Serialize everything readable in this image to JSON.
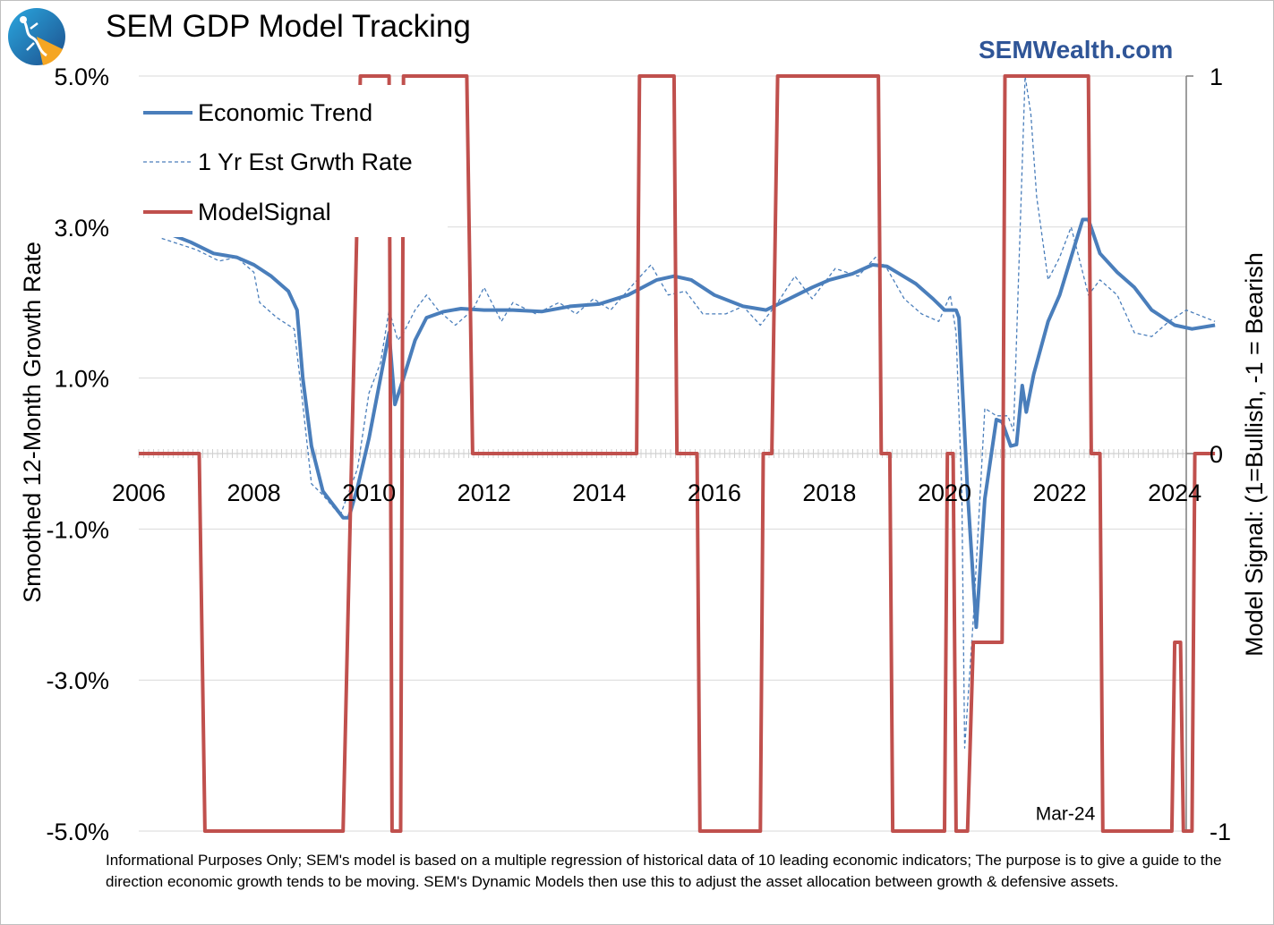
{
  "header": {
    "title": "SEM GDP Model Tracking",
    "brand": "SEMWealth.com"
  },
  "footnote": "Informational Purposes Only; SEM's model is based on a multiple regression of historical data of 10 leading economic indicators; The purpose is to give a guide to the direction economic growth tends to be moving. SEM's Dynamic Models then use this to adjust the asset allocation between growth & defensive assets.",
  "colors": {
    "trend": "#4a7ebb",
    "estimate": "#4a7ebb",
    "signal": "#c0504d",
    "brand": "#2f5597",
    "grid": "#d9d9d9"
  },
  "chart_data": {
    "type": "line",
    "title": "SEM GDP Model Tracking",
    "ylabel": "Smoothed 12-Month Growth Rate",
    "y2label": "Model Signal: (1=Bullish, -1 = Bearish",
    "ylim": [
      -5.0,
      5.0
    ],
    "y2lim": [
      -1,
      1
    ],
    "xlim": [
      2006,
      2024.2
    ],
    "yticks": [
      5.0,
      3.0,
      1.0,
      -1.0,
      -3.0,
      -5.0
    ],
    "ytick_labels": [
      "5.0%",
      "3.0%",
      "1.0%",
      "-1.0%",
      "-3.0%",
      "-5.0%"
    ],
    "y2ticks": [
      1,
      0,
      -1
    ],
    "y2tick_labels": [
      "1",
      "0",
      "-1"
    ],
    "xticks": [
      2006,
      2008,
      2010,
      2012,
      2014,
      2016,
      2018,
      2020,
      2022,
      2024
    ],
    "xtick_labels": [
      "2006",
      "2008",
      "2010",
      "2012",
      "2014",
      "2016",
      "2018",
      "2020",
      "2022",
      "2024"
    ],
    "annotation": {
      "text": "Mar-24",
      "x": 2022.1,
      "y": -4.85
    },
    "legend": [
      "Economic Trend",
      "1 Yr Est Grwth Rate",
      "ModelSignal"
    ],
    "series": [
      {
        "name": "Economic Trend",
        "axis": "left",
        "style": "solid",
        "points": [
          [
            2006.4,
            2.95
          ],
          [
            2006.9,
            2.8
          ],
          [
            2007.3,
            2.65
          ],
          [
            2007.7,
            2.6
          ],
          [
            2008.0,
            2.5
          ],
          [
            2008.3,
            2.35
          ],
          [
            2008.6,
            2.15
          ],
          [
            2008.75,
            1.9
          ],
          [
            2008.85,
            1.0
          ],
          [
            2009.0,
            0.1
          ],
          [
            2009.2,
            -0.5
          ],
          [
            2009.4,
            -0.7
          ],
          [
            2009.55,
            -0.85
          ],
          [
            2009.65,
            -0.85
          ],
          [
            2009.8,
            -0.45
          ],
          [
            2010.0,
            0.2
          ],
          [
            2010.2,
            1.0
          ],
          [
            2010.35,
            1.6
          ],
          [
            2010.45,
            0.65
          ],
          [
            2010.6,
            1.0
          ],
          [
            2010.8,
            1.5
          ],
          [
            2011.0,
            1.8
          ],
          [
            2011.3,
            1.88
          ],
          [
            2011.6,
            1.92
          ],
          [
            2012.0,
            1.9
          ],
          [
            2012.5,
            1.9
          ],
          [
            2013.0,
            1.88
          ],
          [
            2013.5,
            1.95
          ],
          [
            2014.0,
            1.98
          ],
          [
            2014.5,
            2.1
          ],
          [
            2015.0,
            2.3
          ],
          [
            2015.3,
            2.35
          ],
          [
            2015.6,
            2.3
          ],
          [
            2016.0,
            2.1
          ],
          [
            2016.5,
            1.95
          ],
          [
            2016.9,
            1.9
          ],
          [
            2017.3,
            2.05
          ],
          [
            2017.7,
            2.2
          ],
          [
            2018.0,
            2.3
          ],
          [
            2018.4,
            2.38
          ],
          [
            2018.75,
            2.5
          ],
          [
            2019.0,
            2.48
          ],
          [
            2019.5,
            2.25
          ],
          [
            2019.8,
            2.05
          ],
          [
            2020.0,
            1.9
          ],
          [
            2020.2,
            1.9
          ],
          [
            2020.25,
            1.8
          ],
          [
            2020.4,
            -0.5
          ],
          [
            2020.55,
            -2.3
          ],
          [
            2020.7,
            -0.6
          ],
          [
            2020.9,
            0.45
          ],
          [
            2021.0,
            0.42
          ],
          [
            2021.15,
            0.1
          ],
          [
            2021.25,
            0.12
          ],
          [
            2021.35,
            0.9
          ],
          [
            2021.42,
            0.55
          ],
          [
            2021.55,
            1.05
          ],
          [
            2021.8,
            1.75
          ],
          [
            2022.0,
            2.1
          ],
          [
            2022.2,
            2.6
          ],
          [
            2022.4,
            3.1
          ],
          [
            2022.5,
            3.1
          ],
          [
            2022.7,
            2.65
          ],
          [
            2023.0,
            2.4
          ],
          [
            2023.3,
            2.2
          ],
          [
            2023.6,
            1.9
          ],
          [
            2024.0,
            1.7
          ],
          [
            2024.3,
            1.65
          ],
          [
            2024.7,
            1.7
          ]
        ]
      },
      {
        "name": "1 Yr Est Grwth Rate",
        "axis": "left",
        "style": "dashed",
        "points": [
          [
            2006.4,
            2.85
          ],
          [
            2007.0,
            2.7
          ],
          [
            2007.4,
            2.55
          ],
          [
            2007.7,
            2.6
          ],
          [
            2008.0,
            2.4
          ],
          [
            2008.1,
            2.0
          ],
          [
            2008.4,
            1.8
          ],
          [
            2008.7,
            1.65
          ],
          [
            2008.8,
            1.0
          ],
          [
            2009.0,
            -0.4
          ],
          [
            2009.2,
            -0.55
          ],
          [
            2009.5,
            -0.82
          ],
          [
            2009.8,
            -0.2
          ],
          [
            2010.0,
            0.8
          ],
          [
            2010.2,
            1.2
          ],
          [
            2010.35,
            1.9
          ],
          [
            2010.5,
            1.5
          ],
          [
            2010.6,
            1.6
          ],
          [
            2010.8,
            1.9
          ],
          [
            2011.0,
            2.1
          ],
          [
            2011.2,
            1.9
          ],
          [
            2011.5,
            1.7
          ],
          [
            2011.8,
            1.9
          ],
          [
            2012.0,
            2.2
          ],
          [
            2012.3,
            1.75
          ],
          [
            2012.5,
            2.0
          ],
          [
            2012.9,
            1.85
          ],
          [
            2013.3,
            2.0
          ],
          [
            2013.6,
            1.85
          ],
          [
            2013.9,
            2.05
          ],
          [
            2014.2,
            1.9
          ],
          [
            2014.6,
            2.25
          ],
          [
            2014.9,
            2.5
          ],
          [
            2015.2,
            2.1
          ],
          [
            2015.5,
            2.15
          ],
          [
            2015.8,
            1.85
          ],
          [
            2016.2,
            1.85
          ],
          [
            2016.5,
            1.95
          ],
          [
            2016.8,
            1.7
          ],
          [
            2017.1,
            2.0
          ],
          [
            2017.4,
            2.35
          ],
          [
            2017.7,
            2.05
          ],
          [
            2018.1,
            2.45
          ],
          [
            2018.5,
            2.35
          ],
          [
            2018.8,
            2.6
          ],
          [
            2019.0,
            2.45
          ],
          [
            2019.3,
            2.05
          ],
          [
            2019.6,
            1.85
          ],
          [
            2019.9,
            1.75
          ],
          [
            2020.1,
            2.1
          ],
          [
            2020.2,
            1.6
          ],
          [
            2020.3,
            -0.5
          ],
          [
            2020.35,
            -3.9
          ],
          [
            2020.5,
            -2.2
          ],
          [
            2020.7,
            0.6
          ],
          [
            2020.9,
            0.5
          ],
          [
            2021.1,
            0.5
          ],
          [
            2021.2,
            0.3
          ],
          [
            2021.4,
            5.0
          ],
          [
            2021.5,
            4.5
          ],
          [
            2021.6,
            3.4
          ],
          [
            2021.8,
            2.3
          ],
          [
            2022.0,
            2.6
          ],
          [
            2022.2,
            3.0
          ],
          [
            2022.35,
            2.55
          ],
          [
            2022.5,
            2.1
          ],
          [
            2022.7,
            2.3
          ],
          [
            2023.0,
            2.1
          ],
          [
            2023.3,
            1.6
          ],
          [
            2023.6,
            1.55
          ],
          [
            2023.9,
            1.75
          ],
          [
            2024.2,
            1.9
          ],
          [
            2024.7,
            1.75
          ]
        ]
      },
      {
        "name": "ModelSignal",
        "axis": "right",
        "style": "solid",
        "points": [
          [
            2006.0,
            0
          ],
          [
            2007.05,
            0
          ],
          [
            2007.15,
            -1
          ],
          [
            2009.55,
            -1
          ],
          [
            2009.85,
            1
          ],
          [
            2010.35,
            1
          ],
          [
            2010.4,
            -1
          ],
          [
            2010.55,
            -1
          ],
          [
            2010.6,
            1
          ],
          [
            2011.7,
            1
          ],
          [
            2011.8,
            0
          ],
          [
            2014.65,
            0
          ],
          [
            2014.7,
            1
          ],
          [
            2015.3,
            1
          ],
          [
            2015.35,
            0
          ],
          [
            2015.7,
            0
          ],
          [
            2015.75,
            -1
          ],
          [
            2016.8,
            -1
          ],
          [
            2016.85,
            0
          ],
          [
            2017.0,
            0
          ],
          [
            2017.1,
            1
          ],
          [
            2018.85,
            1
          ],
          [
            2018.9,
            0
          ],
          [
            2019.05,
            0
          ],
          [
            2019.1,
            -1
          ],
          [
            2020.0,
            -1
          ],
          [
            2020.05,
            0
          ],
          [
            2020.15,
            0
          ],
          [
            2020.2,
            -1
          ],
          [
            2020.4,
            -1
          ],
          [
            2020.5,
            -0.5
          ],
          [
            2021.0,
            -0.5
          ],
          [
            2021.05,
            1
          ],
          [
            2022.5,
            1
          ],
          [
            2022.55,
            0
          ],
          [
            2022.7,
            0
          ],
          [
            2022.75,
            -1
          ],
          [
            2023.95,
            -1
          ],
          [
            2024.0,
            -0.5
          ],
          [
            2024.1,
            -0.5
          ],
          [
            2024.15,
            -1
          ],
          [
            2024.3,
            -1
          ],
          [
            2024.35,
            0
          ],
          [
            2024.7,
            0
          ]
        ]
      }
    ]
  }
}
